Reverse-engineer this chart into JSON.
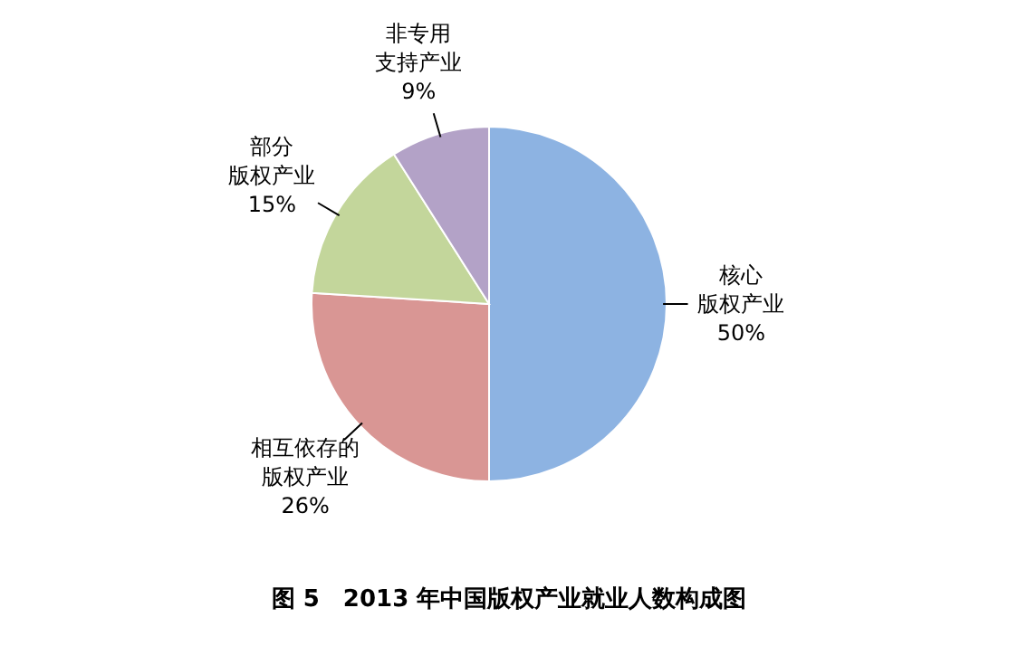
{
  "chart_data": {
    "type": "pie",
    "title": "图 5　2013 年中国版权产业就业人数构成图",
    "categories": [
      "核心版权产业",
      "相互依存的版权产业",
      "部分版权产业",
      "非专用支持产业"
    ],
    "values": [
      50,
      26,
      15,
      9
    ],
    "value_labels": [
      "50%",
      "26%",
      "15%",
      "9%"
    ],
    "colors": [
      "#8db3e2",
      "#d99694",
      "#c3d69b",
      "#b3a2c7"
    ]
  }
}
